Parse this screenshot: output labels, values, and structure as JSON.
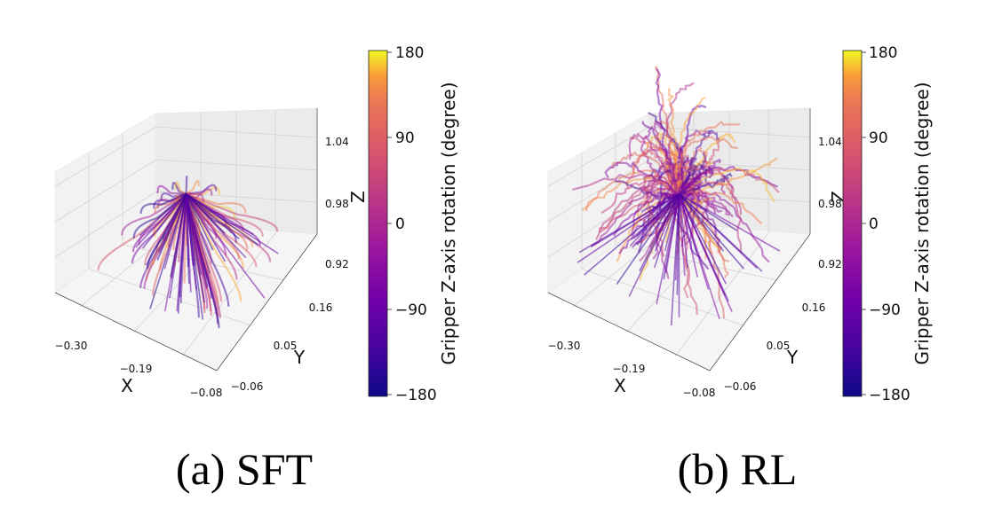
{
  "chart_data": [
    {
      "type": "scatter",
      "subtype": "3d-trajectories",
      "title": "(a) SFT",
      "xlabel": "X",
      "ylabel": "Y",
      "zlabel": "Z",
      "x_ticks": [
        "−0.30",
        "−0.19",
        "−0.08"
      ],
      "y_ticks": [
        "−0.06",
        "0.05",
        "0.16"
      ],
      "z_ticks": [
        "0.92",
        "0.98",
        "1.04"
      ],
      "xlim": [
        -0.32,
        -0.06
      ],
      "ylim": [
        -0.09,
        0.19
      ],
      "zlim": [
        0.88,
        1.06
      ],
      "colorbar": {
        "label": "Gripper Z-axis rotation (degree)",
        "ticks": [
          "180",
          "90",
          "0",
          "−90",
          "−180"
        ],
        "range": [
          -180,
          180
        ],
        "colormap": "plasma"
      },
      "trajectories": {
        "count": 90,
        "start": {
          "x": -0.19,
          "y": 0.05,
          "z": 0.98
        },
        "pattern": "straight descent from common start point",
        "spread": "low"
      }
    },
    {
      "type": "scatter",
      "subtype": "3d-trajectories",
      "title": "(b) RL",
      "xlabel": "X",
      "ylabel": "Y",
      "zlabel": "Z",
      "x_ticks": [
        "−0.30",
        "−0.19",
        "−0.08"
      ],
      "y_ticks": [
        "−0.06",
        "0.05",
        "0.16"
      ],
      "z_ticks": [
        "0.92",
        "0.98",
        "1.04"
      ],
      "xlim": [
        -0.32,
        -0.06
      ],
      "ylim": [
        -0.09,
        0.19
      ],
      "zlim": [
        0.88,
        1.06
      ],
      "colorbar": {
        "label": "Gripper Z-axis rotation (degree)",
        "ticks": [
          "180",
          "90",
          "0",
          "−90",
          "−180"
        ],
        "range": [
          -180,
          180
        ],
        "colormap": "plasma"
      },
      "trajectories": {
        "count": 110,
        "start": {
          "x": -0.19,
          "y": 0.05,
          "z": 0.98
        },
        "pattern": "curved exploratory paths from common start point",
        "spread": "high"
      }
    }
  ]
}
